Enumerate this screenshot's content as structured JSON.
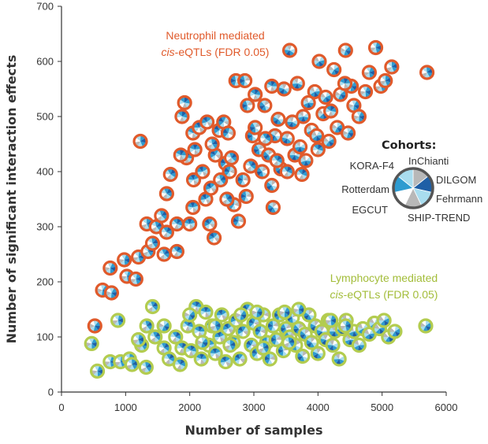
{
  "chart_data": {
    "type": "scatter",
    "xlabel": "Number of samples",
    "ylabel": "Number of significant interaction effects",
    "xlim": [
      0,
      6000
    ],
    "ylim": [
      0,
      700
    ],
    "x_ticks": [
      "0",
      "1000",
      "2000",
      "3000",
      "4000",
      "5000",
      "6000"
    ],
    "y_ticks": [
      "0",
      "100",
      "200",
      "300",
      "400",
      "500",
      "600",
      "700"
    ],
    "grid": false,
    "colors": {
      "neutrophil": "#e05a2b",
      "lymphocyte": "#b3cc4f",
      "slice_dark": "#1f5fa6",
      "slice_mid": "#2e9bd0",
      "slice_light": "#a9ddef",
      "slice_gray": "#b8b8b8",
      "slice_white": "#ffffff"
    },
    "annotations": {
      "neutrophil_line1": "Neutrophil mediated",
      "neutrophil_line2_italic": "cis",
      "neutrophil_line2_rest": "-eQTLs (FDR 0.05)",
      "lymphocyte_line1": "Lymphocyte mediated",
      "lymphocyte_line2_italic": "cis",
      "lymphocyte_line2_rest": "-eQTLs (FDR 0.05)"
    },
    "legend": {
      "title": "Cohorts:",
      "placement": "right",
      "cohorts": [
        "InChianti",
        "DILGOM",
        "Fehrmann",
        "SHIP-TREND",
        "EGCUT",
        "Rotterdam",
        "KORA-F4"
      ]
    },
    "series": [
      {
        "name": "Neutrophil mediated cis-eQTLs (FDR 0.05)",
        "points": [
          [
            520,
            120
          ],
          [
            640,
            185
          ],
          [
            780,
            180
          ],
          [
            760,
            225
          ],
          [
            980,
            240
          ],
          [
            1020,
            210
          ],
          [
            1160,
            205
          ],
          [
            1200,
            245
          ],
          [
            1230,
            455
          ],
          [
            1330,
            305
          ],
          [
            1350,
            255
          ],
          [
            1420,
            270
          ],
          [
            1480,
            300
          ],
          [
            1560,
            320
          ],
          [
            1600,
            250
          ],
          [
            1640,
            360
          ],
          [
            1700,
            395
          ],
          [
            1640,
            290
          ],
          [
            1800,
            255
          ],
          [
            1800,
            305
          ],
          [
            1880,
            500
          ],
          [
            1920,
            525
          ],
          [
            1950,
            425
          ],
          [
            1860,
            430
          ],
          [
            2050,
            470
          ],
          [
            2080,
            440
          ],
          [
            2000,
            305
          ],
          [
            2050,
            335
          ],
          [
            2060,
            385
          ],
          [
            2150,
            480
          ],
          [
            2200,
            400
          ],
          [
            2250,
            350
          ],
          [
            2270,
            490
          ],
          [
            2330,
            370
          ],
          [
            2380,
            280
          ],
          [
            2310,
            305
          ],
          [
            2400,
            430
          ],
          [
            2460,
            475
          ],
          [
            2530,
            490
          ],
          [
            2560,
            415
          ],
          [
            2600,
            470
          ],
          [
            2620,
            400
          ],
          [
            2690,
            340
          ],
          [
            2760,
            310
          ],
          [
            2830,
            385
          ],
          [
            2880,
            355
          ],
          [
            2720,
            565
          ],
          [
            2860,
            565
          ],
          [
            2900,
            520
          ],
          [
            2980,
            465
          ],
          [
            3020,
            480
          ],
          [
            3080,
            440
          ],
          [
            3130,
            400
          ],
          [
            3170,
            520
          ],
          [
            3230,
            430
          ],
          [
            3280,
            375
          ],
          [
            3300,
            335
          ],
          [
            3330,
            465
          ],
          [
            3380,
            495
          ],
          [
            3420,
            405
          ],
          [
            3470,
            550
          ],
          [
            3520,
            460
          ],
          [
            3560,
            620
          ],
          [
            3600,
            490
          ],
          [
            3640,
            430
          ],
          [
            3680,
            560
          ],
          [
            3720,
            445
          ],
          [
            3770,
            500
          ],
          [
            3810,
            420
          ],
          [
            3850,
            525
          ],
          [
            3900,
            475
          ],
          [
            3950,
            545
          ],
          [
            3980,
            465
          ],
          [
            4020,
            600
          ],
          [
            4080,
            505
          ],
          [
            4120,
            535
          ],
          [
            4170,
            455
          ],
          [
            4250,
            585
          ],
          [
            4300,
            480
          ],
          [
            4350,
            540
          ],
          [
            4430,
            620
          ],
          [
            4470,
            470
          ],
          [
            4520,
            555
          ],
          [
            4560,
            520
          ],
          [
            4640,
            500
          ],
          [
            4740,
            545
          ],
          [
            4800,
            580
          ],
          [
            4900,
            625
          ],
          [
            4980,
            555
          ],
          [
            5050,
            565
          ],
          [
            5150,
            590
          ],
          [
            5700,
            580
          ],
          [
            2350,
            450
          ],
          [
            2480,
            385
          ],
          [
            2580,
            350
          ],
          [
            2650,
            425
          ],
          [
            2950,
            410
          ],
          [
            3180,
            460
          ],
          [
            3360,
            420
          ],
          [
            3520,
            400
          ],
          [
            3750,
            395
          ],
          [
            4000,
            440
          ],
          [
            4200,
            510
          ],
          [
            3020,
            540
          ],
          [
            3280,
            555
          ],
          [
            4420,
            560
          ]
        ]
      },
      {
        "name": "Lymphocyte mediated cis-eQTLs (FDR 0.05)",
        "points": [
          [
            470,
            88
          ],
          [
            560,
            38
          ],
          [
            760,
            55
          ],
          [
            880,
            130
          ],
          [
            920,
            55
          ],
          [
            1060,
            60
          ],
          [
            1100,
            50
          ],
          [
            1250,
            85
          ],
          [
            1320,
            45
          ],
          [
            1330,
            120
          ],
          [
            1420,
            155
          ],
          [
            1460,
            100
          ],
          [
            1600,
            80
          ],
          [
            1680,
            60
          ],
          [
            1780,
            100
          ],
          [
            1850,
            50
          ],
          [
            1880,
            80
          ],
          [
            1970,
            120
          ],
          [
            2020,
            75
          ],
          [
            2100,
            155
          ],
          [
            2150,
            110
          ],
          [
            2180,
            60
          ],
          [
            2250,
            145
          ],
          [
            2300,
            85
          ],
          [
            2350,
            120
          ],
          [
            2400,
            70
          ],
          [
            2470,
            100
          ],
          [
            2500,
            140
          ],
          [
            2560,
            55
          ],
          [
            2600,
            115
          ],
          [
            2680,
            90
          ],
          [
            2720,
            130
          ],
          [
            2780,
            60
          ],
          [
            2830,
            110
          ],
          [
            2900,
            150
          ],
          [
            2960,
            85
          ],
          [
            3000,
            125
          ],
          [
            3050,
            70
          ],
          [
            3100,
            110
          ],
          [
            3150,
            140
          ],
          [
            3200,
            90
          ],
          [
            3250,
            60
          ],
          [
            3300,
            120
          ],
          [
            3350,
            95
          ],
          [
            3400,
            140
          ],
          [
            3460,
            75
          ],
          [
            3500,
            115
          ],
          [
            3560,
            100
          ],
          [
            3600,
            135
          ],
          [
            3650,
            85
          ],
          [
            3700,
            115
          ],
          [
            3760,
            65
          ],
          [
            3800,
            105
          ],
          [
            3860,
            140
          ],
          [
            3900,
            90
          ],
          [
            3960,
            120
          ],
          [
            4000,
            70
          ],
          [
            4060,
            110
          ],
          [
            4120,
            95
          ],
          [
            4160,
            130
          ],
          [
            4230,
            85
          ],
          [
            4260,
            110
          ],
          [
            4330,
            60
          ],
          [
            4380,
            115
          ],
          [
            4440,
            130
          ],
          [
            4500,
            95
          ],
          [
            4560,
            110
          ],
          [
            4640,
            85
          ],
          [
            4700,
            115
          ],
          [
            4800,
            105
          ],
          [
            4880,
            125
          ],
          [
            4960,
            115
          ],
          [
            5030,
            130
          ],
          [
            5100,
            100
          ],
          [
            5200,
            110
          ],
          [
            5680,
            120
          ],
          [
            1600,
            120
          ],
          [
            2000,
            140
          ],
          [
            2200,
            90
          ],
          [
            2800,
            140
          ],
          [
            3050,
            145
          ],
          [
            3480,
            145
          ],
          [
            3700,
            150
          ],
          [
            4200,
            130
          ],
          [
            4430,
            120
          ],
          [
            1200,
            95
          ],
          [
            2400,
            120
          ],
          [
            2630,
            85
          ],
          [
            3150,
            80
          ],
          [
            3550,
            90
          ]
        ]
      }
    ]
  }
}
